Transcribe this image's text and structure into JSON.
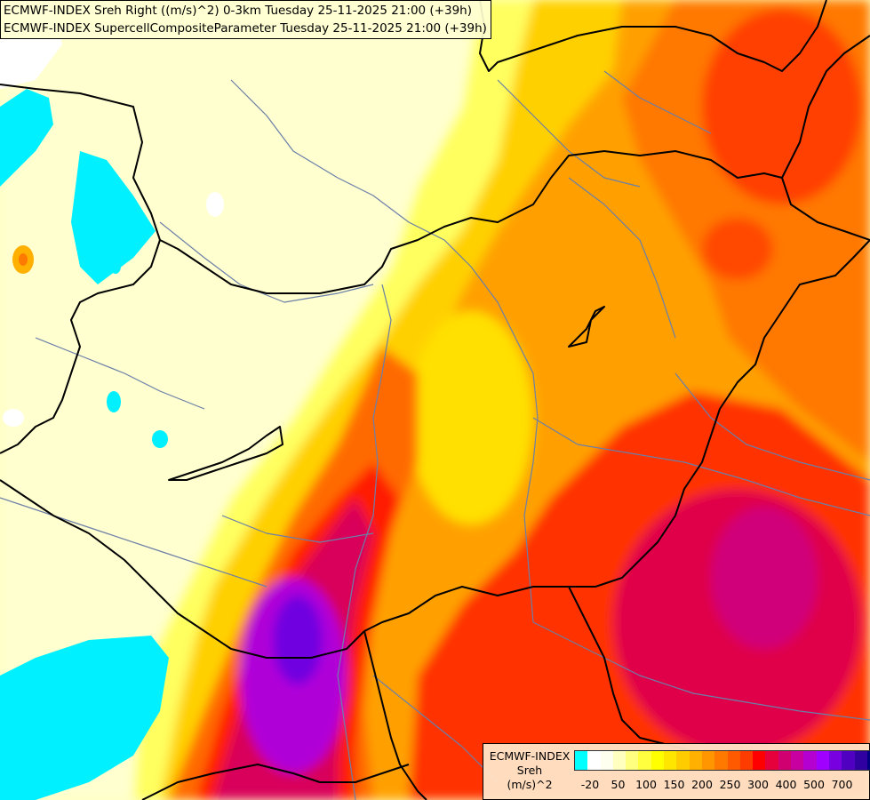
{
  "title": {
    "line1": "ECMWF-INDEX Sreh Right ((m/s)^2) 0-3km Tuesday 25-11-2025 21:00 (+39h)",
    "line2": "ECMWF-INDEX SupercellCompositeParameter Tuesday 25-11-2025 21:00 (+39h)"
  },
  "legend": {
    "label_line1": "ECMWF-INDEX",
    "label_line2": "Sreh",
    "label_line3": "(m/s)^2",
    "colors": [
      "#00ffff",
      "#ffffff",
      "#fffff0",
      "#ffffc0",
      "#ffff80",
      "#ffff40",
      "#ffff00",
      "#ffe600",
      "#ffcc00",
      "#ffb000",
      "#ff9600",
      "#ff7800",
      "#ff5a00",
      "#ff3c00",
      "#ff0000",
      "#e6003c",
      "#d00070",
      "#c800a0",
      "#b400d0",
      "#a000ff",
      "#7800e0",
      "#5000c0",
      "#3000a0",
      "#000080"
    ],
    "ticks": [
      {
        "label": "-20",
        "index": 1
      },
      {
        "label": "50",
        "index": 3
      },
      {
        "label": "100",
        "index": 5
      },
      {
        "label": "150",
        "index": 7
      },
      {
        "label": "200",
        "index": 9
      },
      {
        "label": "250",
        "index": 11
      },
      {
        "label": "300",
        "index": 13
      },
      {
        "label": "400",
        "index": 15
      },
      {
        "label": "500",
        "index": 17
      },
      {
        "label": "700",
        "index": 19
      }
    ]
  }
}
